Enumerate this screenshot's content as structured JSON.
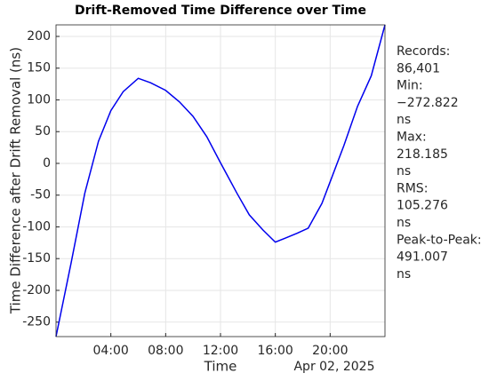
{
  "chart_data": {
    "type": "line",
    "title": "Drift-Removed Time Difference over Time",
    "x_label": "Time",
    "x_date_label": "Apr 02, 2025",
    "y_label": "Time Difference after Drift Removal (ns)",
    "x": [
      0,
      1.1,
      2.1,
      3.1,
      4,
      4.9,
      6,
      6.9,
      8,
      9,
      10,
      11,
      12,
      13.2,
      14.1,
      15.1,
      16,
      16.7,
      17.6,
      18.4,
      19.4,
      20,
      21,
      22,
      23,
      24
    ],
    "series": [
      {
        "name": "Time Difference",
        "color": "#0000ee",
        "values": [
          -272.822,
          -157,
          -47,
          35,
          83,
          113,
          134,
          127,
          115,
          97,
          74,
          42,
          1,
          -47,
          -81,
          -105,
          -124,
          -118,
          -110,
          -102,
          -63,
          -29,
          28,
          90,
          138,
          218.185
        ]
      }
    ],
    "xlim": [
      0,
      24
    ],
    "xticks": [
      {
        "value": 4,
        "label": "04:00"
      },
      {
        "value": 8,
        "label": "08:00"
      },
      {
        "value": 12,
        "label": "12:00"
      },
      {
        "value": 16,
        "label": "16:00"
      },
      {
        "value": 20,
        "label": "20:00"
      }
    ],
    "ylim": [
      -272.822,
      218.185
    ],
    "yticks": [
      -250,
      -200,
      -150,
      -100,
      -50,
      0,
      50,
      100,
      150,
      200
    ],
    "grid": true,
    "stats": [
      "Records:",
      "86,401",
      "Min:",
      "−272.822",
      "ns",
      "Max:",
      "218.185",
      "ns",
      "RMS:",
      "105.276",
      "ns",
      "Peak-to-Peak:",
      "491.007",
      "ns"
    ]
  }
}
